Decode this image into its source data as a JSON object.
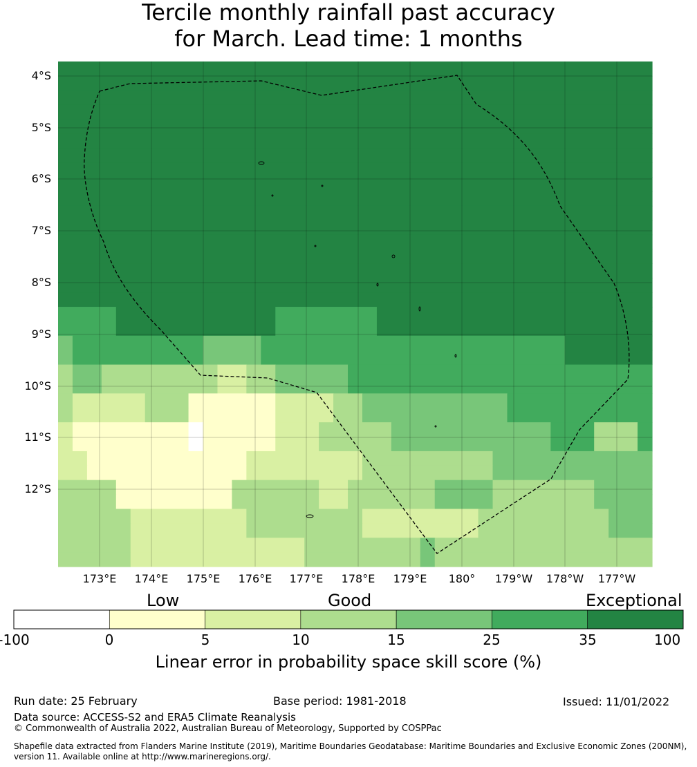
{
  "title_line1": "Tercile monthly rainfall past accuracy",
  "title_line2": "for March. Lead time: 1 months",
  "map": {
    "lat_labels": [
      "4°S",
      "5°S",
      "6°S",
      "7°S",
      "8°S",
      "9°S",
      "10°S",
      "11°S",
      "12°S"
    ],
    "lon_labels": [
      "173°E",
      "174°E",
      "175°E",
      "176°E",
      "177°E",
      "178°E",
      "179°E",
      "180°",
      "179°W",
      "178°W",
      "177°W"
    ],
    "class_colors": [
      "#ffffff",
      "#ffffcc",
      "#d9f0a3",
      "#addd8e",
      "#78c679",
      "#41ab5d",
      "#238443"
    ],
    "grid_rows": [
      "66666666666666666666666666666666666666666",
      "66666666666666666666666666666666666666666",
      "66666666666666666666666666666666666666666",
      "66666666666666666666666666666666666666666",
      "66666666666666666666666666666666666666666",
      "66666666666666666666666666666666666666666",
      "66666666666666666666666666666666666666666",
      "66666666666666666666666666666666666666666",
      "66666666666666666666666666666666666666666",
      "66666666666666666666666666666666666666666",
      "66666666666666666666666666666666666666666",
      "66666666666666666666666666666666666666666",
      "66666666666666666666666666666666666666666",
      "66666666666666666666666666666666666666666",
      "66666666666666666666666666666666666666666",
      "66666666666666666666666666666666666666666",
      "66666666666666666666666666666666666666666",
      "55556666666666655555556666666666666666666",
      "55556666666666655555556666666666666666666",
      "45555555554444555555555555555555555666666",
      "45555555554444555555555555555555555666666",
      "34433333333223344444555555555555555555555",
      "34433333333223344444555555555555555555555",
      "32222233311111122223344444444445555555555",
      "32222233311111122223344444444445555555555",
      "21111111101111122233333444444444445553335",
      "21111111101111122233333444444444445553335",
      "22111111111112222222233333333344444444444",
      "22111111111112222222233333333344444444444",
      "33331111111133333322333333444433333334444",
      "33331111111133333322333333444433333334444",
      "33333222222223333333322222222333333333444",
      "33333222222223333333322222222333333333444",
      "33333222222222222333333334333333333333333",
      "33333222222222222333333334333333333333333"
    ],
    "extent": {
      "lon_min": 172.2,
      "lon_max": 183.7,
      "lat_min": -13.8,
      "lat_max": -3.8
    }
  },
  "colorbar": {
    "categories": [
      "Low",
      "Good",
      "Exceptional"
    ],
    "ticks": [
      "-100",
      "0",
      "5",
      "10",
      "15",
      "25",
      "35",
      "100"
    ],
    "colors": [
      "#ffffff",
      "#ffffcc",
      "#d9f0a3",
      "#addd8e",
      "#78c679",
      "#41ab5d",
      "#238443"
    ],
    "title": "Linear error in probability space skill score (%)"
  },
  "footer": {
    "run_date": "Run date: 25 February",
    "base_period": "Base period: 1981-2018",
    "issued": "Issued: 11/01/2022",
    "data_source": "Data source: ACCESS-S2 and ERA5 Climate Reanalysis",
    "copyright": "© Commonwealth of Australia 2022, Australian Bureau of Meteorology, Supported by COSPPac",
    "shapefile": "Shapefile data extracted from Flanders Marine Institute (2019), Maritime Boundaries Geodatabase: Maritime Boundaries and Exclusive Economic Zones (200NM), version 11. Available online at http://www.marineregions.org/."
  }
}
